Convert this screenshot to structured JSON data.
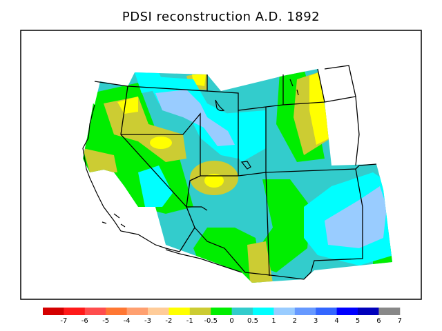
{
  "title": "PDSI reconstruction A.D. 1892",
  "legend": {
    "colors": [
      "#d40000",
      "#ff1a1a",
      "#ff4d4d",
      "#ff7733",
      "#ffa070",
      "#ffcc99",
      "#ffff00",
      "#cccc33",
      "#00ee00",
      "#33cccc",
      "#00ffff",
      "#99ccff",
      "#6699ff",
      "#3366ff",
      "#0000ff",
      "#0000bb",
      "#888888"
    ],
    "labels": [
      "-7",
      "-6",
      "-5",
      "-4",
      "-3",
      "-2",
      "-1",
      "-0.5",
      "0",
      "0.5",
      "1",
      "2",
      "3",
      "4",
      "5",
      "6",
      "7"
    ]
  }
}
